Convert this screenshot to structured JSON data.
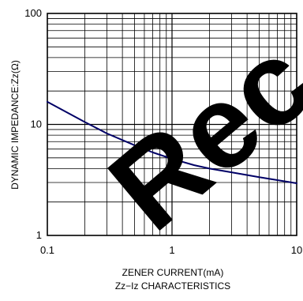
{
  "chart_data": {
    "type": "line",
    "title": "",
    "caption": "Zz−Iz CHARACTERISTICS",
    "xlabel": "ZENER CURRENT(mA)",
    "ylabel": "DYNAMIC IMPEDANCE:Zz(Ω)",
    "x_scale": "log",
    "y_scale": "log",
    "xlim": [
      0.1,
      10
    ],
    "ylim": [
      1,
      100
    ],
    "grid": true,
    "legend": "none",
    "x_ticks": [
      {
        "value": 0.1,
        "label": "0.1"
      },
      {
        "value": 1,
        "label": "1"
      },
      {
        "value": 10,
        "label": "10"
      }
    ],
    "y_ticks": [
      {
        "value": 1,
        "label": "1"
      },
      {
        "value": 10,
        "label": "10"
      },
      {
        "value": 100,
        "label": "100"
      }
    ],
    "series": [
      {
        "color": "#000066",
        "x": [
          0.1,
          0.15,
          0.2,
          0.3,
          0.5,
          0.7,
          1,
          1.5,
          2,
          3,
          5,
          7,
          10
        ],
        "y": [
          16,
          12.5,
          10.5,
          8.3,
          6.5,
          5.6,
          4.9,
          4.3,
          4.0,
          3.7,
          3.35,
          3.15,
          2.95
        ]
      }
    ]
  },
  "watermark": {
    "text": "Rec",
    "color": "#000000"
  }
}
